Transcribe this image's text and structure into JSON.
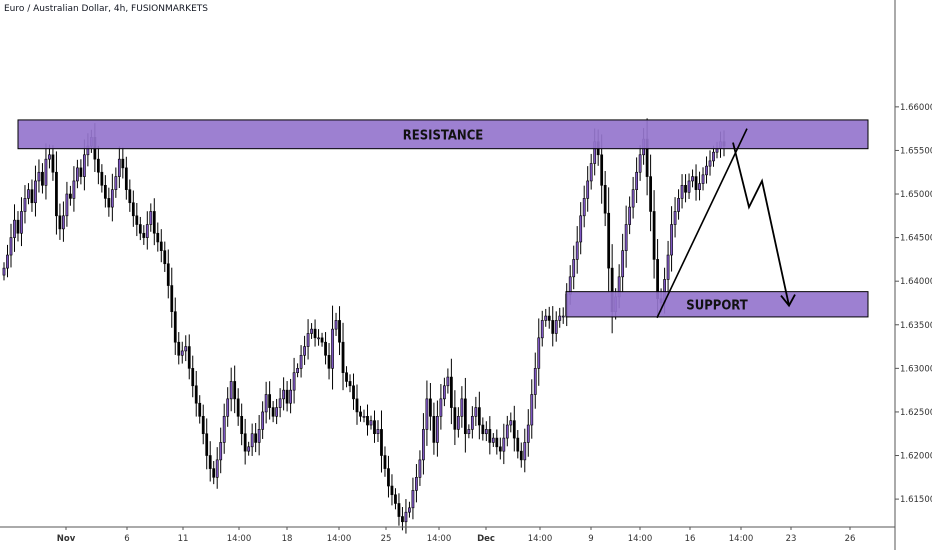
{
  "header": {
    "title": "Euro / Australian Dollar, 4h, FUSIONMARKETS"
  },
  "colors": {
    "bull": "#7e57c2",
    "bear": "#000000",
    "zone_fill": "#9575cd",
    "zone_stroke": "#000000",
    "axis": "#555555"
  },
  "chart_data": {
    "type": "candlestick",
    "title": "Euro / Australian Dollar, 4h, FUSIONMARKETS",
    "xlabel": "",
    "ylabel": "",
    "ylim": [
      1.6118,
      1.6718
    ],
    "grid": false,
    "x_tick_labels": [
      "Nov",
      "6",
      "11",
      "14:00",
      "18",
      "14:00",
      "25",
      "14:00",
      "Dec",
      "14:00",
      "9",
      "14:00",
      "16",
      "14:00",
      "23",
      "26"
    ],
    "y_tick_labels": [
      "1.66000",
      "1.65500",
      "1.65000",
      "1.64500",
      "1.64000",
      "1.63500",
      "1.63000",
      "1.62500",
      "1.62000",
      "1.61500"
    ],
    "y_tick_values": [
      1.66,
      1.655,
      1.65,
      1.645,
      1.64,
      1.635,
      1.63,
      1.625,
      1.62,
      1.615
    ],
    "zones": [
      {
        "label": "RESISTANCE",
        "low": 1.6552,
        "high": 1.6585
      },
      {
        "label": "SUPPORT",
        "low": 1.6359,
        "high": 1.6388
      }
    ],
    "trendline": [
      [
        1.6358,
        1.6575
      ]
    ],
    "projection_path": [
      1.6559,
      1.6485,
      1.6515,
      1.6372
    ],
    "closes": [
      1.6415,
      1.643,
      1.645,
      1.647,
      1.6455,
      1.648,
      1.6495,
      1.6505,
      1.649,
      1.6515,
      1.6525,
      1.651,
      1.654,
      1.6545,
      1.6525,
      1.6475,
      1.646,
      1.6475,
      1.65,
      1.6495,
      1.6515,
      1.653,
      1.652,
      1.6545,
      1.6555,
      1.6565,
      1.654,
      1.6525,
      1.651,
      1.6495,
      1.6485,
      1.6505,
      1.652,
      1.654,
      1.653,
      1.6505,
      1.649,
      1.6475,
      1.6465,
      1.6455,
      1.645,
      1.6465,
      1.648,
      1.6455,
      1.6445,
      1.6435,
      1.642,
      1.6395,
      1.6365,
      1.633,
      1.6315,
      1.632,
      1.6325,
      1.63,
      1.628,
      1.626,
      1.6245,
      1.6225,
      1.62,
      1.6185,
      1.6175,
      1.6195,
      1.6215,
      1.6245,
      1.6265,
      1.6285,
      1.6265,
      1.6245,
      1.6225,
      1.6205,
      1.621,
      1.6225,
      1.6215,
      1.623,
      1.625,
      1.627,
      1.6255,
      1.6245,
      1.6255,
      1.6265,
      1.6275,
      1.626,
      1.6275,
      1.6295,
      1.63,
      1.6315,
      1.6325,
      1.634,
      1.6345,
      1.6335,
      1.6335,
      1.633,
      1.6315,
      1.63,
      1.6345,
      1.6355,
      1.633,
      1.6295,
      1.6285,
      1.628,
      1.6265,
      1.625,
      1.6245,
      1.6245,
      1.6235,
      1.624,
      1.6225,
      1.623,
      1.62,
      1.6185,
      1.6165,
      1.6155,
      1.6145,
      1.613,
      1.6124,
      1.6135,
      1.614,
      1.616,
      1.6175,
      1.6195,
      1.623,
      1.6265,
      1.6245,
      1.6215,
      1.6245,
      1.6265,
      1.628,
      1.629,
      1.6255,
      1.623,
      1.6245,
      1.6265,
      1.6225,
      1.623,
      1.6245,
      1.6255,
      1.6235,
      1.6225,
      1.623,
      1.6215,
      1.622,
      1.621,
      1.6205,
      1.622,
      1.6235,
      1.624,
      1.622,
      1.6205,
      1.6195,
      1.6215,
      1.6235,
      1.627,
      1.63,
      1.6335,
      1.6355,
      1.636,
      1.6355,
      1.634,
      1.6355,
      1.636,
      1.636,
      1.6385,
      1.6405,
      1.6425,
      1.6445,
      1.6475,
      1.6495,
      1.6515,
      1.6535,
      1.656,
      1.6545,
      1.651,
      1.6478,
      1.6415,
      1.6365,
      1.6382,
      1.6405,
      1.6435,
      1.6465,
      1.6485,
      1.6505,
      1.6525,
      1.6545,
      1.6563,
      1.652,
      1.648,
      1.6425,
      1.638,
      1.6375,
      1.6402,
      1.643,
      1.6465,
      1.648,
      1.6495,
      1.651,
      1.6502,
      1.6515,
      1.652,
      1.6505,
      1.6512,
      1.6522,
      1.6532,
      1.6538,
      1.6548,
      1.6552,
      1.656,
      1.6555
    ]
  }
}
